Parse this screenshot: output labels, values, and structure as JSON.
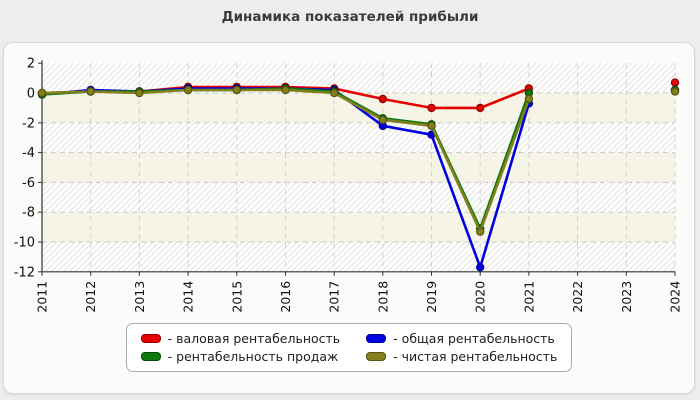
{
  "title": "Динамика показателей прибыли",
  "chart_data": {
    "type": "line",
    "title": "Динамика показателей прибыли",
    "categories": [
      "2011",
      "2012",
      "2013",
      "2014",
      "2015",
      "2016",
      "2017",
      "2018",
      "2019",
      "2020",
      "2021",
      "2022",
      "2023",
      "2024"
    ],
    "ylim": [
      -12,
      2
    ],
    "ytick_step": 2,
    "grid": "dashed",
    "legend_position": "bottom",
    "band_colors": {
      "hatch_line": "#e2e2dd",
      "hatch_bg": "#ffffff",
      "plain": "#f5f4e6"
    },
    "series": [
      {
        "name": "валовая рентабельность",
        "color": "#e60000",
        "marker_border": "#8f0000",
        "values": [
          0.0,
          0.1,
          0.1,
          0.4,
          0.4,
          0.4,
          0.3,
          -0.4,
          -1.0,
          -1.0,
          0.3,
          null,
          null,
          0.7
        ]
      },
      {
        "name": "общая рентабельность",
        "color": "#0000e0",
        "marker_border": "#000090",
        "values": [
          -0.1,
          0.2,
          0.1,
          0.3,
          0.3,
          0.3,
          0.2,
          -2.2,
          -2.8,
          -11.7,
          -0.7,
          null,
          null,
          0.2
        ]
      },
      {
        "name": "рентабельность продаж",
        "color": "#0d7a0d",
        "marker_border": "#064a06",
        "values": [
          -0.1,
          0.1,
          0.1,
          0.2,
          0.2,
          0.3,
          0.1,
          -1.7,
          -2.1,
          -9.1,
          0.0,
          null,
          null,
          0.2
        ]
      },
      {
        "name": "чистая рентабельность",
        "color": "#83801c",
        "marker_border": "#555310",
        "values": [
          0.0,
          0.1,
          0.0,
          0.2,
          0.2,
          0.2,
          0.0,
          -1.8,
          -2.2,
          -9.3,
          -0.4,
          null,
          null,
          0.1
        ]
      }
    ]
  },
  "legend": {
    "items": [
      {
        "label": "- валовая рентабельность"
      },
      {
        "label": "- общая рентабельность"
      },
      {
        "label": "- рентабельность продаж"
      },
      {
        "label": "- чистая рентабельность"
      }
    ]
  }
}
